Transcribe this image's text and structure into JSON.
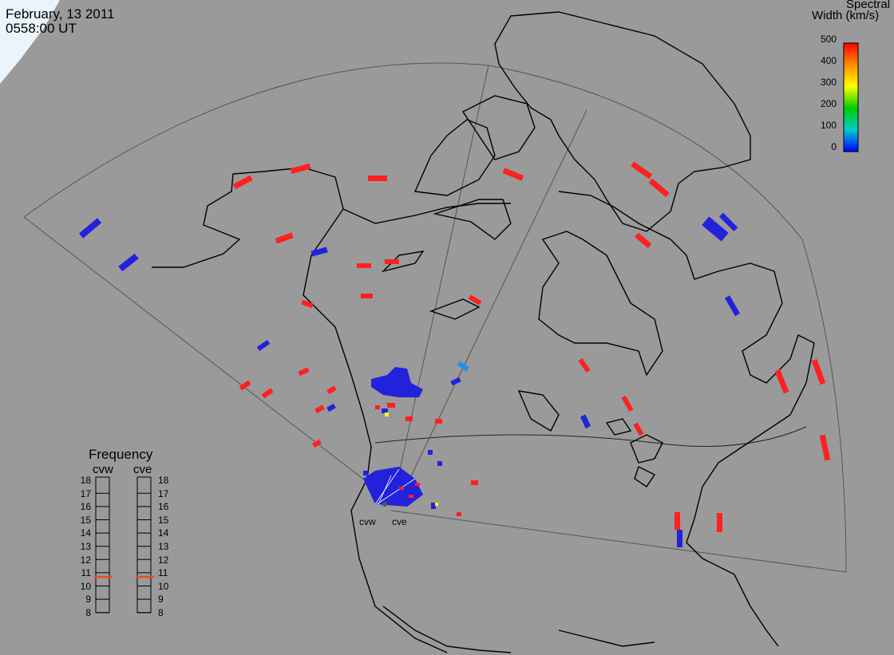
{
  "header": {
    "date": "February, 13 2011",
    "time": "0558:00 UT"
  },
  "colorbar": {
    "title_line1": "Spectral",
    "title_line2": "Width (km/s)",
    "ticks": [
      "500",
      "400",
      "300",
      "200",
      "100",
      "0"
    ],
    "min_value": 0,
    "max_value": 500,
    "colors": [
      "#ff0000",
      "#ff8c00",
      "#ffff00",
      "#00cc00",
      "#00cccc",
      "#0000ff"
    ]
  },
  "frequency_panel": {
    "title": "Frequency",
    "radar_labels": [
      "cvw",
      "cve"
    ],
    "scale": [
      "18",
      "17",
      "16",
      "15",
      "14",
      "13",
      "12",
      "11",
      "10",
      "9",
      "8"
    ],
    "cvw_marker_mhz": 10.7,
    "cve_marker_mhz": 10.7,
    "marker_color": "#e8501e"
  },
  "radar_stations": {
    "west": "cvw",
    "east": "cve"
  },
  "map_colors": {
    "background": "#9a9a9a",
    "coastline": "#000000",
    "fov_outline": "#555555",
    "daylight_corner": "#eaf4fb"
  }
}
